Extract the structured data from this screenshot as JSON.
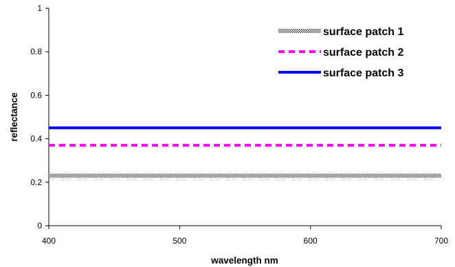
{
  "chart_data": {
    "type": "line",
    "title": "",
    "xlabel": "wavelength nm",
    "ylabel": "reflectance",
    "xlim": [
      400,
      700
    ],
    "ylim": [
      0,
      1
    ],
    "x_ticks": [
      400,
      500,
      600,
      700
    ],
    "x_tick_labels": [
      "400",
      "500",
      "600",
      "700"
    ],
    "y_ticks": [
      0,
      0.2,
      0.4,
      0.6,
      0.8,
      1
    ],
    "y_tick_labels": [
      "0",
      "0.2",
      "0.4",
      "0.6",
      "0.8",
      "1"
    ],
    "grid": false,
    "legend_position": "top-right",
    "x": [
      400,
      700
    ],
    "series": [
      {
        "name": "surface patch 1",
        "values": [
          0.23,
          0.23
        ],
        "color": "#808080",
        "style": "hatched"
      },
      {
        "name": "surface patch 2",
        "values": [
          0.37,
          0.37
        ],
        "color": "#ff00ff",
        "style": "dashed"
      },
      {
        "name": "surface patch 3",
        "values": [
          0.45,
          0.45
        ],
        "color": "#0000ff",
        "style": "solid"
      }
    ]
  }
}
